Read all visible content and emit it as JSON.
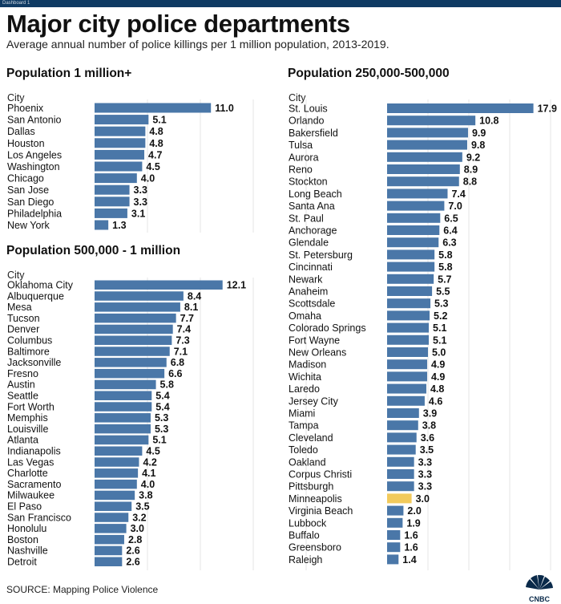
{
  "window": {
    "tab_label": "Dashboard 1"
  },
  "header": {
    "title": "Major city police departments",
    "subtitle": "Average annual number of police killings per 1 million population, 2013-2019."
  },
  "footer": {
    "source": "SOURCE: Mapping Police Violence",
    "logo_text": "CNBC"
  },
  "colors": {
    "bar": "#4a77a8",
    "highlight": "#f2ca5c",
    "grid": "#e4e4e4",
    "top_bar": "#0f3a63"
  },
  "chart_data": [
    {
      "type": "bar",
      "orientation": "horizontal",
      "title": "Population 1 million+",
      "ylabel": "City",
      "xlim": [
        0,
        20
      ],
      "grid": true,
      "categories": [
        "Phoenix",
        "San Antonio",
        "Dallas",
        "Houston",
        "Los Angeles",
        "Washington",
        "Chicago",
        "San Jose",
        "San Diego",
        "Philadelphia",
        "New York"
      ],
      "values": [
        11.0,
        5.1,
        4.8,
        4.8,
        4.7,
        4.5,
        4.0,
        3.3,
        3.3,
        3.1,
        1.3
      ],
      "labels": [
        "11.0",
        "5.1",
        "4.8",
        "4.8",
        "4.7",
        "4.5",
        "4.0",
        "3.3",
        "3.3",
        "3.1",
        "1.3"
      ]
    },
    {
      "type": "bar",
      "orientation": "horizontal",
      "title": "Population 500,000 - 1 million",
      "ylabel": "City",
      "xlim": [
        0,
        20
      ],
      "grid": true,
      "categories": [
        "Oklahoma City",
        "Albuquerque",
        "Mesa",
        "Tucson",
        "Denver",
        "Columbus",
        "Baltimore",
        "Jacksonville",
        "Fresno",
        "Austin",
        "Seattle",
        "Fort Worth",
        "Memphis",
        "Louisville",
        "Atlanta",
        "Indianapolis",
        "Las Vegas",
        "Charlotte",
        "Sacramento",
        "Milwaukee",
        "El Paso",
        "San Francisco",
        "Honolulu",
        "Boston",
        "Nashville",
        "Detroit"
      ],
      "values": [
        12.1,
        8.4,
        8.1,
        7.7,
        7.4,
        7.3,
        7.1,
        6.8,
        6.6,
        5.8,
        5.4,
        5.4,
        5.3,
        5.3,
        5.1,
        4.5,
        4.2,
        4.1,
        4.0,
        3.8,
        3.5,
        3.2,
        3.0,
        2.8,
        2.6,
        2.6
      ],
      "labels": [
        "12.1",
        "8.4",
        "8.1",
        "7.7",
        "7.4",
        "7.3",
        "7.1",
        "6.8",
        "6.6",
        "5.8",
        "5.4",
        "5.4",
        "5.3",
        "5.3",
        "5.1",
        "4.5",
        "4.2",
        "4.1",
        "4.0",
        "3.8",
        "3.5",
        "3.2",
        "3.0",
        "2.8",
        "2.6",
        "2.6"
      ]
    },
    {
      "type": "bar",
      "orientation": "horizontal",
      "title": "Population 250,000-500,000",
      "ylabel": "City",
      "xlim": [
        0,
        20
      ],
      "grid": true,
      "categories": [
        "St. Louis",
        "Orlando",
        "Bakersfield",
        "Tulsa",
        "Aurora",
        "Reno",
        "Stockton",
        "Long Beach",
        "Santa Ana",
        "St. Paul",
        "Anchorage",
        "Glendale",
        "St. Petersburg",
        "Cincinnati",
        "Newark",
        "Anaheim",
        "Scottsdale",
        "Omaha",
        "Colorado Springs",
        "Fort Wayne",
        "New Orleans",
        "Madison",
        "Wichita",
        "Laredo",
        "Jersey City",
        "Miami",
        "Tampa",
        "Cleveland",
        "Toledo",
        "Oakland",
        "Corpus Christi",
        "Pittsburgh",
        "Minneapolis",
        "Virginia Beach",
        "Lubbock",
        "Buffalo",
        "Greensboro",
        "Raleigh"
      ],
      "values": [
        17.9,
        10.8,
        9.9,
        9.8,
        9.2,
        8.9,
        8.8,
        7.4,
        7.0,
        6.5,
        6.4,
        6.3,
        5.8,
        5.8,
        5.7,
        5.5,
        5.3,
        5.2,
        5.1,
        5.1,
        5.0,
        4.9,
        4.9,
        4.8,
        4.6,
        3.9,
        3.8,
        3.6,
        3.5,
        3.3,
        3.3,
        3.3,
        3.0,
        2.0,
        1.9,
        1.6,
        1.6,
        1.4
      ],
      "labels": [
        "17.9",
        "10.8",
        "9.9",
        "9.8",
        "9.2",
        "8.9",
        "8.8",
        "7.4",
        "7.0",
        "6.5",
        "6.4",
        "6.3",
        "5.8",
        "5.8",
        "5.7",
        "5.5",
        "5.3",
        "5.2",
        "5.1",
        "5.1",
        "5.0",
        "4.9",
        "4.9",
        "4.8",
        "4.6",
        "3.9",
        "3.8",
        "3.6",
        "3.5",
        "3.3",
        "3.3",
        "3.3",
        "3.0",
        "2.0",
        "1.9",
        "1.6",
        "1.6",
        "1.4"
      ],
      "highlight": "Minneapolis"
    }
  ]
}
